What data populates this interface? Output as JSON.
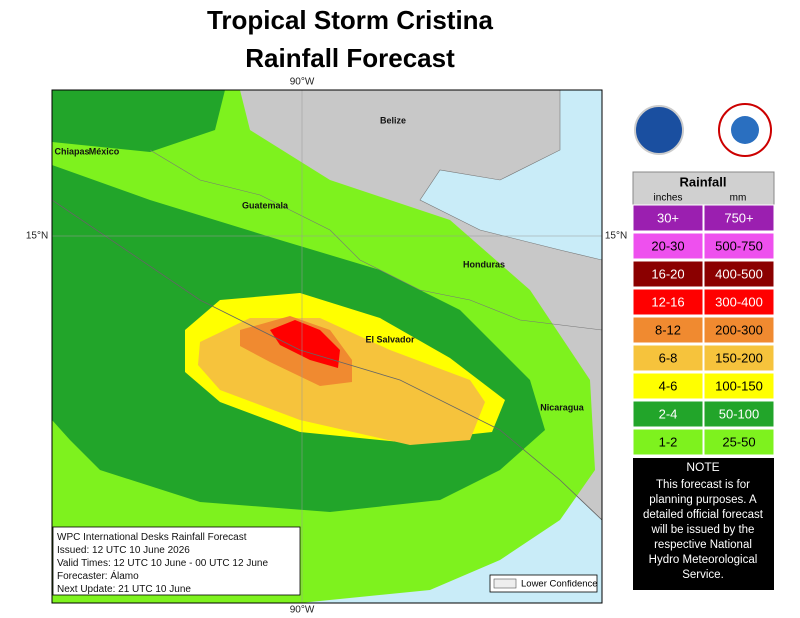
{
  "header": {
    "title_lines": [
      "Tropical Storm Cristina",
      "Rainfall Forecast"
    ]
  },
  "map": {
    "lon_labels": [
      "90°W",
      "90°W"
    ],
    "lat_labels": [
      "15°N",
      "15°N"
    ],
    "places": [
      "Belize",
      "Chiapas",
      "México",
      "Guatemala",
      "Honduras",
      "El Salvador",
      "Nicaragua"
    ],
    "info_lines": [
      "WPC International Desks Rainfall Forecast",
      "Issued: 12 UTC 10 June 2026",
      "Valid Times: 12 UTC 10 June - 00 UTC 12 June",
      "Forecaster: Álamo",
      "Next Update: 21 UTC 10 June"
    ],
    "lower_confidence": "Lower Confidence"
  },
  "legend": {
    "title": "Rainfall",
    "units": [
      "inches",
      "mm"
    ],
    "rows": [
      {
        "inches": "30+",
        "mm": "750+",
        "color": "#9b1fb0"
      },
      {
        "inches": "20-30",
        "mm": "500-750",
        "color": "#ee50ee"
      },
      {
        "inches": "16-20",
        "mm": "400-500",
        "color": "#8b0000"
      },
      {
        "inches": "12-16",
        "mm": "300-400",
        "color": "#ff0000"
      },
      {
        "inches": "8-12",
        "mm": "200-300",
        "color": "#f08a30"
      },
      {
        "inches": "6-8",
        "mm": "150-200",
        "color": "#f6c33c"
      },
      {
        "inches": "4-6",
        "mm": "100-150",
        "color": "#ffff00"
      },
      {
        "inches": "2-4",
        "mm": "50-100",
        "color": "#22a52a"
      },
      {
        "inches": "1-2",
        "mm": "25-50",
        "color": "#7ef21e"
      }
    ]
  },
  "note": {
    "title": "NOTE",
    "lines": [
      "This forecast is for",
      "planning purposes. A",
      "detailed official forecast",
      "will be issued by the",
      "respective National",
      "Hydro Meteorological",
      "Service."
    ]
  }
}
